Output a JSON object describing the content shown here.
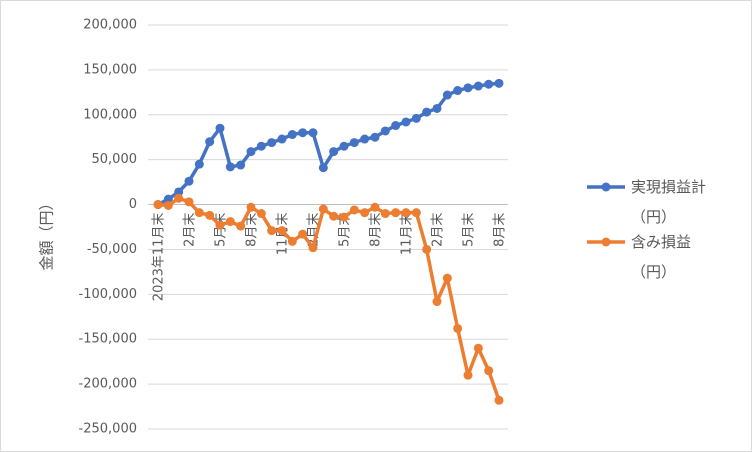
{
  "chart_data": {
    "type": "line",
    "y_label": "金額（円）",
    "categories": [
      "2023年11月末",
      null,
      null,
      "2月末",
      null,
      null,
      "5月末",
      null,
      null,
      "8月末",
      null,
      null,
      "11月末",
      null,
      null,
      "2月末",
      null,
      null,
      "5月末",
      null,
      null,
      "8月末",
      null,
      null,
      "11月末",
      null,
      null,
      "2月末",
      null,
      null,
      "5月末",
      null,
      null,
      "8月末"
    ],
    "series": [
      {
        "name": "実現損益計（円）",
        "color": "#4472c4",
        "values": [
          0,
          6000,
          14000,
          26000,
          45000,
          70000,
          85000,
          42000,
          44000,
          59000,
          65000,
          69000,
          73000,
          78000,
          80000,
          80000,
          41000,
          59000,
          65000,
          69000,
          73000,
          75000,
          82000,
          88000,
          92000,
          96000,
          103000,
          107000,
          122000,
          127000,
          130000,
          132000,
          134000,
          135000
        ]
      },
      {
        "name": "含み損益（円）",
        "color": "#ed7d31",
        "values": [
          0,
          -1000,
          7000,
          3000,
          -9000,
          -12000,
          -23000,
          -19000,
          -24000,
          -3000,
          -10000,
          -29000,
          -29000,
          -41000,
          -33000,
          -48000,
          -5000,
          -13000,
          -14000,
          -6000,
          -9000,
          -3000,
          -10000,
          -9000,
          -9000,
          -9000,
          -50000,
          -108000,
          -82000,
          -138000,
          -190000,
          -160000,
          -185000,
          -218000
        ]
      }
    ],
    "ylim": [
      -250000,
      200000
    ],
    "yticks": [
      {
        "value": -250000,
        "label": "-250,000"
      },
      {
        "value": -200000,
        "label": "-200,000"
      },
      {
        "value": -150000,
        "label": "-150,000"
      },
      {
        "value": -100000,
        "label": "-100,000"
      },
      {
        "value": -50000,
        "label": "-50,000"
      },
      0,
      {
        "value": 50000,
        "label": "50,000"
      },
      {
        "value": 100000,
        "label": "100,000"
      },
      {
        "value": 150000,
        "label": "150,000"
      },
      {
        "value": 200000,
        "label": "200,000"
      }
    ],
    "grid": true,
    "legend": "right"
  }
}
